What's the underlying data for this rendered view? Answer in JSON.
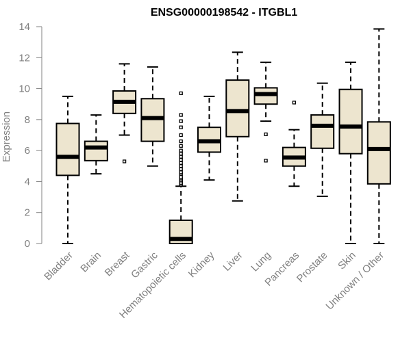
{
  "chart_data": {
    "type": "boxplot",
    "title": "ENSG00000198542 - ITGBL1",
    "xlabel": "",
    "ylabel": "Expression",
    "ylim": [
      0,
      14
    ],
    "yticks": [
      0,
      2,
      4,
      6,
      8,
      10,
      12,
      14
    ],
    "grid": false,
    "categories": [
      "Bladder",
      "Brain",
      "Breast",
      "Gastric",
      "Hematopoietic cells",
      "Kidney",
      "Liver",
      "Lung",
      "Pancreas",
      "Prostate",
      "Skin",
      "Unknown / Other"
    ],
    "boxes": [
      {
        "name": "Bladder",
        "min": 0.0,
        "q1": 4.4,
        "median": 5.6,
        "q3": 7.75,
        "max": 9.5,
        "outliers": []
      },
      {
        "name": "Brain",
        "min": 4.5,
        "q1": 5.35,
        "median": 6.2,
        "q3": 6.6,
        "max": 8.3,
        "outliers": []
      },
      {
        "name": "Breast",
        "min": 7.0,
        "q1": 8.4,
        "median": 9.15,
        "q3": 9.85,
        "max": 11.6,
        "outliers": [
          5.3
        ]
      },
      {
        "name": "Gastric",
        "min": 5.0,
        "q1": 6.6,
        "median": 8.1,
        "q3": 9.35,
        "max": 11.4,
        "outliers": []
      },
      {
        "name": "Hematopoietic cells",
        "min": 0.0,
        "q1": 0.0,
        "median": 0.3,
        "q3": 1.5,
        "max": 3.7,
        "outliers": [
          3.8,
          3.9,
          4.0,
          4.1,
          4.2,
          4.3,
          4.5,
          4.6,
          4.8,
          5.0,
          5.2,
          5.4,
          5.6,
          5.8,
          6.0,
          6.3,
          6.6,
          7.0,
          7.5,
          7.9,
          8.3,
          9.7
        ]
      },
      {
        "name": "Kidney",
        "min": 4.1,
        "q1": 5.9,
        "median": 6.6,
        "q3": 7.5,
        "max": 9.5,
        "outliers": []
      },
      {
        "name": "Liver",
        "min": 2.75,
        "q1": 6.9,
        "median": 8.55,
        "q3": 10.55,
        "max": 12.35,
        "outliers": []
      },
      {
        "name": "Lung",
        "min": 7.9,
        "q1": 9.0,
        "median": 9.65,
        "q3": 10.05,
        "max": 11.7,
        "outliers": [
          7.05,
          5.35
        ]
      },
      {
        "name": "Pancreas",
        "min": 3.7,
        "q1": 5.0,
        "median": 5.55,
        "q3": 6.2,
        "max": 7.35,
        "outliers": [
          9.1
        ]
      },
      {
        "name": "Prostate",
        "min": 3.05,
        "q1": 6.15,
        "median": 7.6,
        "q3": 8.3,
        "max": 10.35,
        "outliers": []
      },
      {
        "name": "Skin",
        "min": 0.0,
        "q1": 5.8,
        "median": 7.55,
        "q3": 9.95,
        "max": 11.7,
        "outliers": []
      },
      {
        "name": "Unknown / Other",
        "min": 0.0,
        "q1": 3.85,
        "median": 6.1,
        "q3": 7.85,
        "max": 13.85,
        "outliers": []
      }
    ],
    "colors": {
      "box_fill": "#ede5cf",
      "box_stroke": "#000000",
      "axis": "#808080",
      "label": "#808080"
    }
  }
}
